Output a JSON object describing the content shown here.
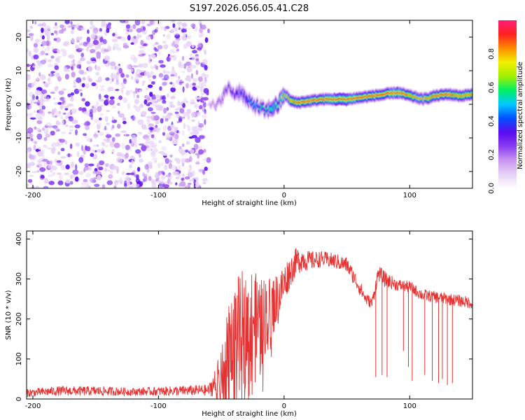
{
  "title": "S197.2026.056.05.41.C28",
  "colors": {
    "spectrogram_colormap": [
      "#ffffff",
      "#e6d2f5",
      "#c896f0",
      "#8c3cf0",
      "#5a0af0",
      "#0050ff",
      "#00c8ff",
      "#00f064",
      "#a0f000",
      "#f0f000",
      "#ff8c00",
      "#ff2020",
      "#ff1e78"
    ],
    "snr_line": "#e83030"
  },
  "chart_data": [
    {
      "type": "heatmap",
      "name": "spectrogram",
      "xlabel": "Height of straight line (km)",
      "ylabel": "Frequency (Hz)",
      "xlim": [
        -205,
        150
      ],
      "ylim": [
        -25,
        25
      ],
      "xticks": [
        -200,
        -100,
        0,
        100
      ],
      "yticks": [
        -20,
        -10,
        0,
        10,
        20
      ],
      "noise_region": {
        "x": [
          -205,
          -60
        ],
        "y": [
          -25,
          25
        ],
        "amplitude": [
          0.05,
          0.2
        ]
      },
      "signal_track": {
        "x": [
          -60,
          -55,
          -50,
          -45,
          -40,
          -35,
          -30,
          -25,
          -20,
          -15,
          -10,
          -5,
          0,
          5,
          10,
          20,
          30,
          40,
          50,
          60,
          70,
          80,
          90,
          100,
          110,
          120,
          130,
          140,
          150
        ],
        "freq": [
          1,
          -1,
          2,
          5,
          3,
          4,
          1,
          0,
          -1,
          -2,
          -1,
          0,
          3,
          1,
          0.5,
          1,
          1.5,
          1.5,
          1.5,
          2,
          2.5,
          3,
          3.5,
          2.5,
          1.5,
          2.5,
          3,
          2.5,
          3
        ],
        "amplitude": [
          0.15,
          0.2,
          0.25,
          0.3,
          0.35,
          0.4,
          0.45,
          0.5,
          0.55,
          0.55,
          0.6,
          0.65,
          0.8,
          0.85,
          0.9,
          0.9,
          0.9,
          0.95,
          0.95,
          0.9,
          0.9,
          0.9,
          0.95,
          0.85,
          0.8,
          0.9,
          0.9,
          0.85,
          0.85
        ]
      },
      "colorbar": {
        "label": "Normalized spectral amplitude",
        "range": [
          0,
          1
        ],
        "ticks": [
          "0.0",
          "0.2",
          "0.4",
          "0.6",
          "0.8"
        ]
      }
    },
    {
      "type": "line",
      "name": "snr",
      "xlabel": "Height of straight line (km)",
      "ylabel": "SNR (10 * v/v)",
      "xlim": [
        -205,
        150
      ],
      "ylim": [
        0,
        420
      ],
      "xticks": [
        -200,
        -100,
        0,
        100
      ],
      "yticks": [
        0,
        100,
        200,
        300,
        400
      ],
      "series": [
        {
          "name": "SNR",
          "x": [
            -205,
            -180,
            -150,
            -120,
            -90,
            -60,
            -50,
            -45,
            -40,
            -35,
            -30,
            -25,
            -20,
            -15,
            -10,
            -5,
            0,
            5,
            10,
            15,
            20,
            30,
            40,
            50,
            60,
            65,
            70,
            75,
            80,
            90,
            100,
            110,
            120,
            130,
            140,
            150
          ],
          "values": [
            15,
            20,
            20,
            18,
            20,
            22,
            60,
            120,
            170,
            190,
            200,
            210,
            190,
            210,
            230,
            250,
            290,
            320,
            345,
            350,
            345,
            350,
            345,
            335,
            280,
            250,
            240,
            315,
            300,
            285,
            280,
            260,
            255,
            250,
            245,
            240
          ],
          "noise": [
            10,
            12,
            12,
            10,
            12,
            14,
            60,
            100,
            120,
            130,
            120,
            120,
            110,
            100,
            80,
            70,
            50,
            40,
            35,
            30,
            25,
            20,
            20,
            20,
            20,
            15,
            15,
            20,
            20,
            15,
            15,
            15,
            15,
            15,
            15,
            15
          ],
          "dropouts": [
            {
              "x": 73,
              "value": 55
            },
            {
              "x": 78,
              "value": 60
            },
            {
              "x": 82,
              "value": 55
            },
            {
              "x": 95,
              "value": 120
            },
            {
              "x": 99,
              "value": 80
            },
            {
              "x": 102,
              "value": 45
            },
            {
              "x": 112,
              "value": 60
            },
            {
              "x": 118,
              "value": 45
            },
            {
              "x": 123,
              "value": 40
            },
            {
              "x": 126,
              "value": 50
            },
            {
              "x": 130,
              "value": 35
            },
            {
              "x": 134,
              "value": 40
            }
          ]
        }
      ]
    }
  ]
}
